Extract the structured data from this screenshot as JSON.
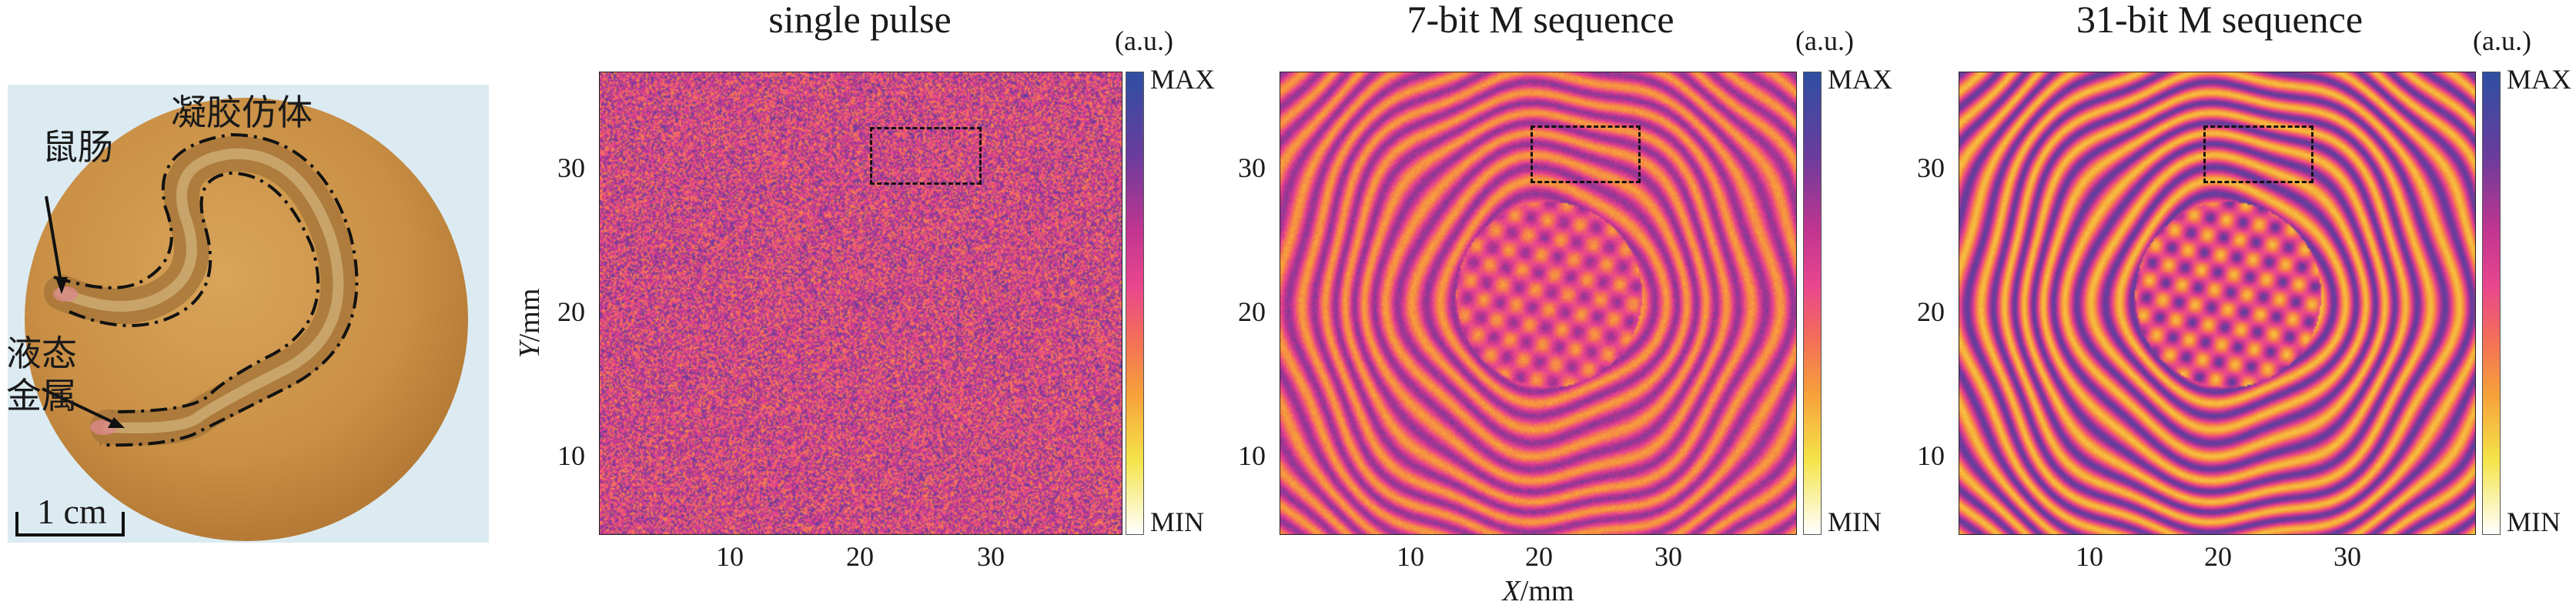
{
  "photo": {
    "label_phantom": "凝胶仿体",
    "label_intestine": "鼠肠",
    "label_metal_line1": "液态",
    "label_metal_line2": "金属",
    "scale_bar": "1 cm"
  },
  "panels": [
    {
      "title": "single pulse",
      "seed": 7,
      "structure": 0.0
    },
    {
      "title": "7-bit M sequence",
      "seed": 19,
      "structure": 0.75
    },
    {
      "title": "31-bit M sequence",
      "seed": 41,
      "structure": 1.0
    }
  ],
  "axes": {
    "y_label_var": "Y",
    "y_label_unit": "/mm",
    "x_label_var": "X",
    "x_label_unit": "/mm",
    "x_ticks": [
      "10",
      "20",
      "30"
    ],
    "y_ticks": [
      "30",
      "20",
      "10"
    ]
  },
  "colorbar": {
    "unit": "(a.u.)",
    "max": "MAX",
    "min": "MIN",
    "colors": [
      "#2e4fa3",
      "#6a3c9d",
      "#c0358f",
      "#e8468f",
      "#f46f57",
      "#f7a23a",
      "#f4e44a",
      "#ffffff"
    ]
  }
}
